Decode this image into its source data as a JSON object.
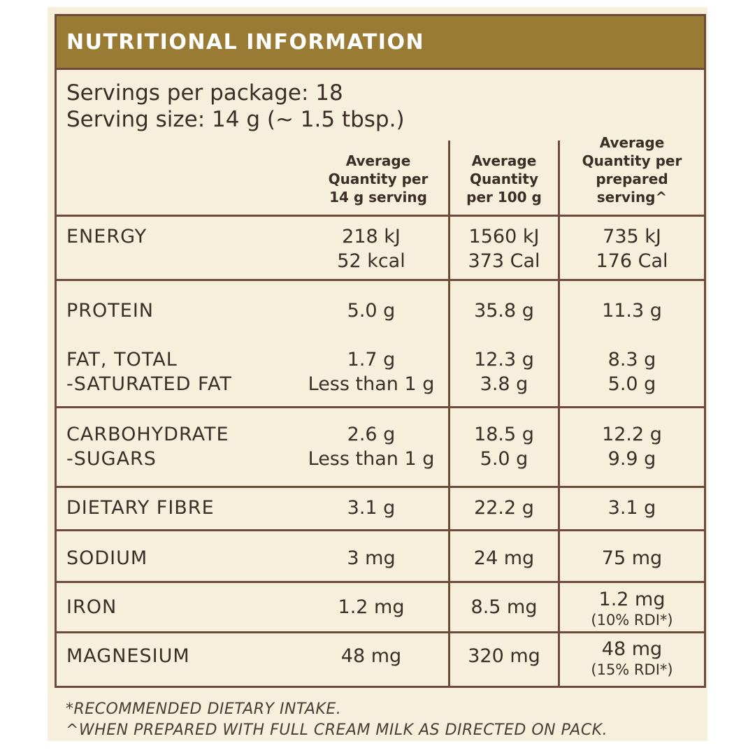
{
  "title": "NUTRITIONAL INFORMATION",
  "servings_per_package": "Servings per package: 18",
  "serving_size": "Serving size: 14 g (~ 1.5 tbsp.)",
  "columns": [
    [
      "Average",
      "Quantity per",
      "14 g serving"
    ],
    [
      "Average",
      "Quantity",
      "per 100 g"
    ],
    [
      "Average",
      "Quantity per",
      "prepared",
      "serving^"
    ]
  ],
  "rows": {
    "energy": {
      "label": "ENERGY",
      "c1": [
        "218 kJ",
        "52 kcal"
      ],
      "c2": [
        "1560 kJ",
        "373 Cal"
      ],
      "c3": [
        "735 kJ",
        "176 Cal"
      ]
    },
    "protein": {
      "label": "PROTEIN",
      "c1": "5.0 g",
      "c2": "35.8 g",
      "c3": "11.3 g"
    },
    "fat": {
      "label": "FAT, TOTAL",
      "c1": "1.7 g",
      "c2": "12.3 g",
      "c3": "8.3 g"
    },
    "sat_fat": {
      "label": "-SATURATED FAT",
      "c1": "Less than 1 g",
      "c2": "3.8 g",
      "c3": "5.0 g"
    },
    "carb": {
      "label": "CARBOHYDRATE",
      "c1": "2.6 g",
      "c2": "18.5 g",
      "c3": "12.2 g"
    },
    "sugars": {
      "label": "-SUGARS",
      "c1": "Less than 1 g",
      "c2": "5.0 g",
      "c3": "9.9 g"
    },
    "fibre": {
      "label": "DIETARY FIBRE",
      "c1": "3.1 g",
      "c2": "22.2 g",
      "c3": "3.1 g"
    },
    "sodium": {
      "label": "SODIUM",
      "c1": "3 mg",
      "c2": "24 mg",
      "c3": "75 mg"
    },
    "iron": {
      "label": "IRON",
      "c1": "1.2 mg",
      "c2": "8.5 mg",
      "c3": "1.2 mg",
      "c3_note": "(10% RDI*)"
    },
    "magnesium": {
      "label": "MAGNESIUM",
      "c1": "48 mg",
      "c2": "320 mg",
      "c3": "48 mg",
      "c3_note": "(15% RDI*)"
    }
  },
  "footnotes": [
    "*RECOMMENDED DIETARY INTAKE.",
    "^WHEN PREPARED WITH FULL CREAM MILK AS DIRECTED ON PACK."
  ],
  "colors": {
    "header": "#9a7b34",
    "border": "#6e4a3a",
    "background": "#f6efdc",
    "text": "#3a2e26"
  }
}
